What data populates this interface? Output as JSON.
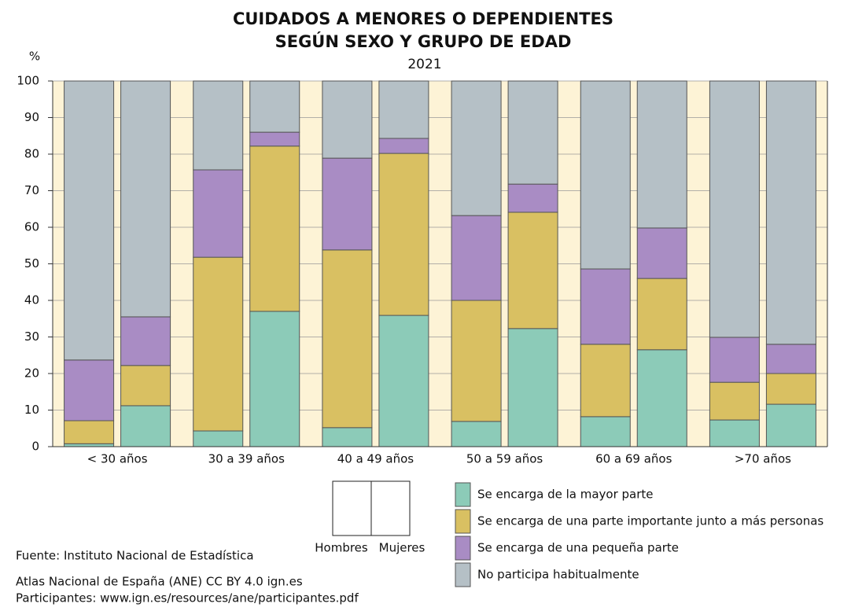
{
  "chart_data": {
    "type": "stacked_bar",
    "title": [
      "CUIDADOS A MENORES O DEPENDIENTES",
      "SEGÚN SEXO Y GRUPO DE EDAD"
    ],
    "subtitle": "2021",
    "y_label": "%",
    "categories": [
      "< 30 años",
      "30 a 39 años",
      "40 a 49 años",
      "50 a 59 años",
      "60 a 69 años",
      ">70 años"
    ],
    "bar_groups": [
      "Hombres",
      "Mujeres"
    ],
    "series": [
      {
        "name": "Se encarga de la mayor parte",
        "color": "#8ccbb8",
        "values": [
          [
            0.8,
            11.2
          ],
          [
            4.3,
            37.0
          ],
          [
            5.2,
            35.9
          ],
          [
            6.9,
            32.3
          ],
          [
            8.2,
            26.5
          ],
          [
            7.3,
            11.6
          ]
        ]
      },
      {
        "name": "Se encarga de una parte importante junto a más personas",
        "color": "#d9c062",
        "values": [
          [
            6.3,
            11.0
          ],
          [
            47.5,
            45.2
          ],
          [
            48.6,
            44.3
          ],
          [
            33.1,
            31.8
          ],
          [
            19.8,
            19.5
          ],
          [
            10.3,
            8.4
          ]
        ]
      },
      {
        "name": "Se encarga de una pequeña parte",
        "color": "#a98cc4",
        "values": [
          [
            16.6,
            13.3
          ],
          [
            23.9,
            3.8
          ],
          [
            25.1,
            4.1
          ],
          [
            23.2,
            7.7
          ],
          [
            20.6,
            13.8
          ],
          [
            12.3,
            8.0
          ]
        ]
      },
      {
        "name": "No participa habitualmente",
        "color": "#b5c0c6",
        "values": [
          [
            76.3,
            64.5
          ],
          [
            24.3,
            14.0
          ],
          [
            21.1,
            15.7
          ],
          [
            36.8,
            28.2
          ],
          [
            51.4,
            40.2
          ],
          [
            70.1,
            72.0
          ]
        ]
      }
    ],
    "ylim": [
      0,
      100
    ],
    "yticks": [
      0,
      10,
      20,
      30,
      40,
      50,
      60,
      70,
      80,
      90,
      100
    ],
    "grid": true,
    "source": [
      "Fuente: Instituto Nacional de Estadística",
      "Atlas Nacional de España (ANE) CC BY 4.0 ign.es",
      "Participantes: www.ign.es/resources/ane/participantes.pdf"
    ]
  }
}
